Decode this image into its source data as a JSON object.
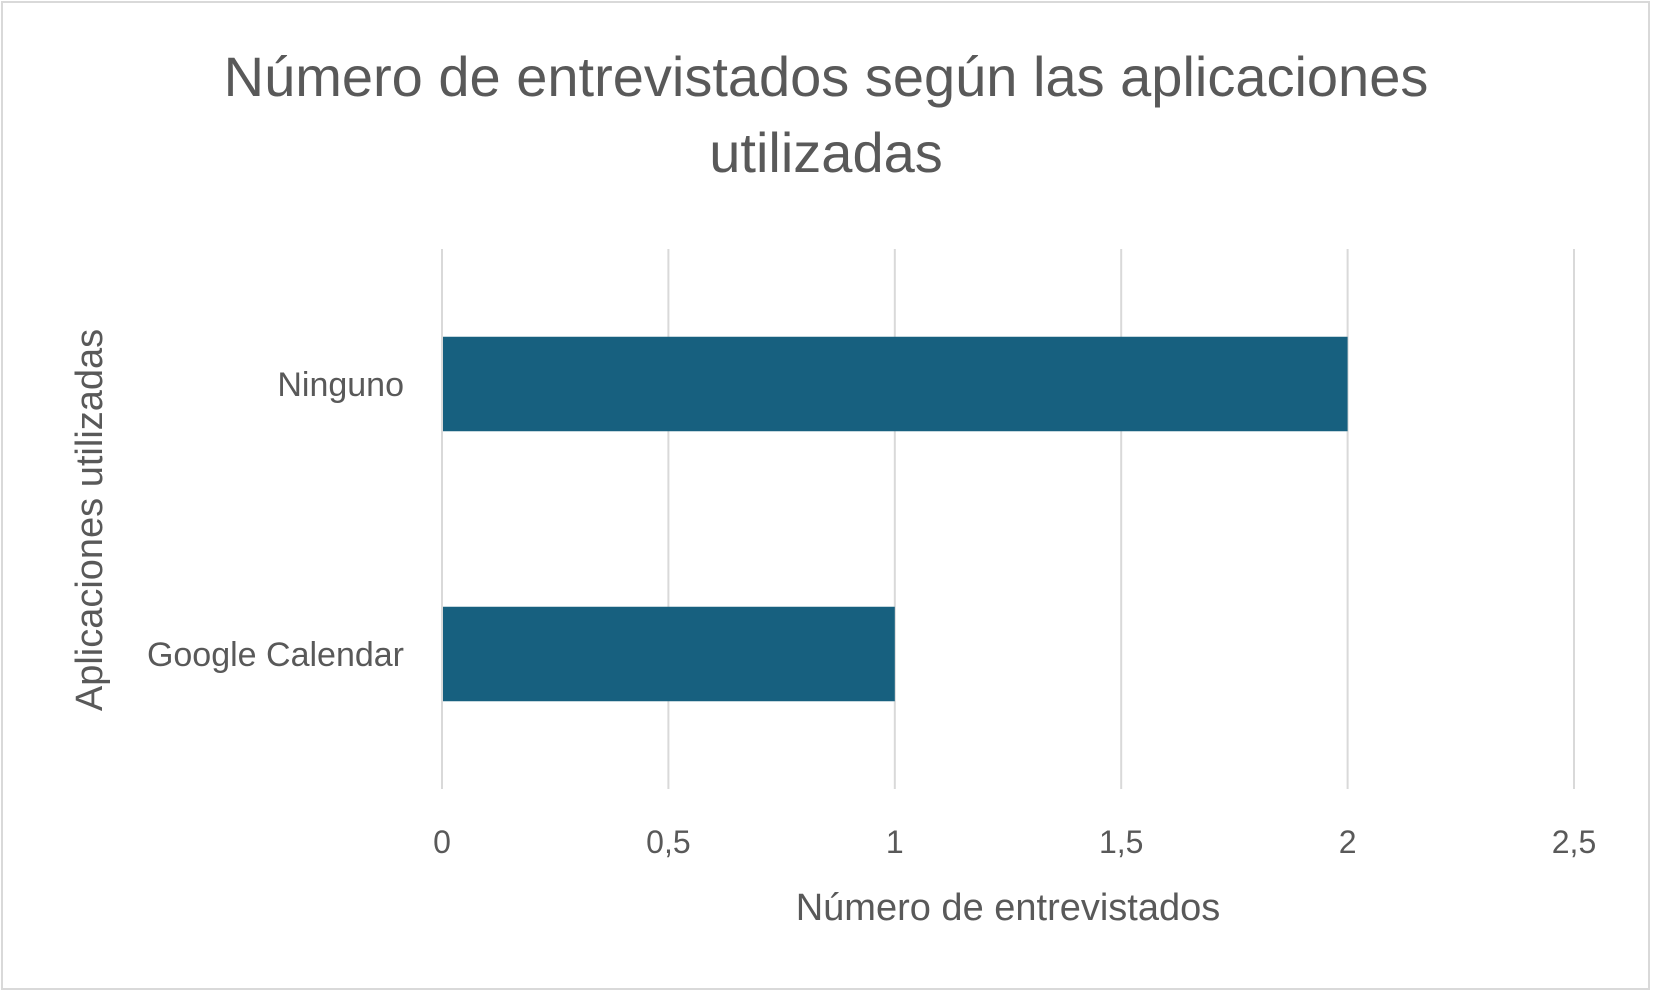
{
  "chart_data": {
    "type": "bar",
    "orientation": "horizontal",
    "title_lines": [
      "Número de entrevistados según las aplicaciones",
      "utilizadas"
    ],
    "xlabel": "Número de entrevistados",
    "ylabel": "Aplicaciones utilizadas",
    "categories": [
      "Ninguno",
      "Google Calendar"
    ],
    "values": [
      2,
      1
    ],
    "xlim": [
      0,
      2.5
    ],
    "x_ticks": [
      0,
      0.5,
      1,
      1.5,
      2,
      2.5
    ],
    "x_tick_labels": [
      "0",
      "0,5",
      "1",
      "1,5",
      "2",
      "2,5"
    ],
    "grid": "vertical",
    "legend": "none",
    "bar_color": "#17607f"
  }
}
